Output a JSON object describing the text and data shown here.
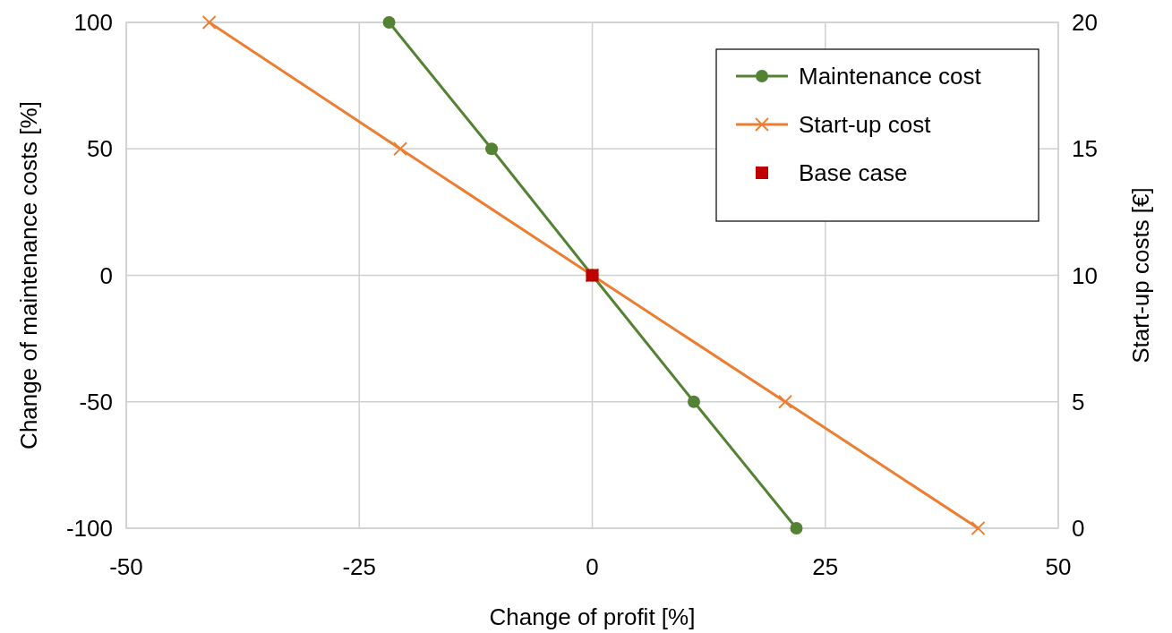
{
  "chart_data": {
    "type": "line",
    "xlabel": "Change of profit [%]",
    "ylabel": "Change of maintenance costs [%]",
    "y2label": "Start-up costs [€]",
    "xlim": [
      -50,
      50
    ],
    "xticks": [
      -50,
      -25,
      0,
      25,
      50
    ],
    "ylim": [
      -100,
      100
    ],
    "yticks": [
      -100,
      -50,
      0,
      50,
      100
    ],
    "y2lim": [
      0,
      20
    ],
    "y2ticks": [
      0,
      5,
      10,
      15,
      20
    ],
    "grid": true,
    "legend": "top right",
    "series": [
      {
        "name": "Maintenance cost",
        "color": "#548235",
        "marker": "circle",
        "x": [
          -21.8,
          -10.8,
          0,
          10.9,
          21.9
        ],
        "values": [
          100,
          50,
          0,
          -50,
          -100
        ]
      },
      {
        "name": "Start-up cost",
        "color": "#ed7d31",
        "marker": "cross",
        "axis": "y2",
        "x": [
          -41.1,
          -20.6,
          0,
          20.7,
          41.4
        ],
        "values": [
          20,
          15,
          10,
          5,
          0
        ]
      },
      {
        "name": "Base case",
        "type": "scatter",
        "color": "#c00000",
        "marker": "square",
        "x": [
          0
        ],
        "values": [
          0
        ]
      }
    ]
  }
}
